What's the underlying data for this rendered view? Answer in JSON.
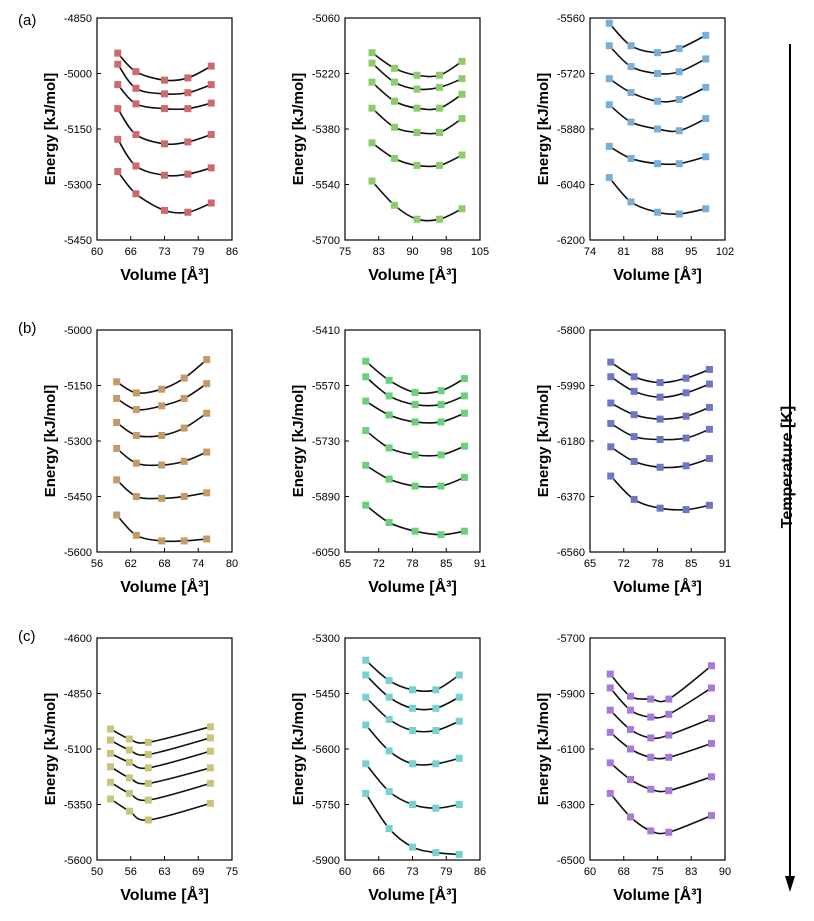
{
  "row_labels": [
    "(a)",
    "(b)",
    "(c)"
  ],
  "side_label": "Temperature [K]",
  "marker_shape": "square",
  "chart_data": [
    {
      "type": "line",
      "row": 0,
      "col": 0,
      "color": "#cd6a6a",
      "xlabel": "Volume [Å³]",
      "ylabel": "Energy [kJ/mol]",
      "xlim": [
        60,
        86
      ],
      "ylim": [
        -5450,
        -4850
      ],
      "xticks": [
        "60",
        "66",
        "73",
        "79",
        "86"
      ],
      "yticks": [
        "-4850",
        "-5000",
        "-5150",
        "-5300",
        "-5450"
      ],
      "x": [
        64,
        67.5,
        73,
        77.5,
        82
      ],
      "series": [
        {
          "values": [
            -4945,
            -4995,
            -5018,
            -5012,
            -4980
          ]
        },
        {
          "values": [
            -4975,
            -5040,
            -5055,
            -5052,
            -5030
          ]
        },
        {
          "values": [
            -5030,
            -5082,
            -5095,
            -5095,
            -5080
          ]
        },
        {
          "values": [
            -5095,
            -5165,
            -5190,
            -5185,
            -5165
          ]
        },
        {
          "values": [
            -5178,
            -5250,
            -5275,
            -5272,
            -5255
          ]
        },
        {
          "values": [
            -5265,
            -5325,
            -5370,
            -5375,
            -5350
          ]
        }
      ]
    },
    {
      "type": "line",
      "row": 0,
      "col": 1,
      "color": "#8ccc6a",
      "xlabel": "Volume [Å³]",
      "ylabel": "Energy [kJ/mol]",
      "xlim": [
        75,
        105
      ],
      "ylim": [
        -5700,
        -5060
      ],
      "xticks": [
        "75",
        "83",
        "90",
        "98",
        "105"
      ],
      "yticks": [
        "-5060",
        "-5220",
        "-5380",
        "-5540",
        "-5700"
      ],
      "x": [
        81,
        86,
        91,
        96,
        101
      ],
      "series": [
        {
          "values": [
            -5160,
            -5205,
            -5225,
            -5225,
            -5185
          ]
        },
        {
          "values": [
            -5190,
            -5245,
            -5265,
            -5260,
            -5235
          ]
        },
        {
          "values": [
            -5245,
            -5300,
            -5320,
            -5320,
            -5280
          ]
        },
        {
          "values": [
            -5320,
            -5375,
            -5390,
            -5390,
            -5350
          ]
        },
        {
          "values": [
            -5420,
            -5465,
            -5485,
            -5485,
            -5455
          ]
        },
        {
          "values": [
            -5530,
            -5600,
            -5640,
            -5640,
            -5610
          ]
        }
      ]
    },
    {
      "type": "line",
      "row": 0,
      "col": 2,
      "color": "#7aaed6",
      "xlabel": "Volume [Å³]",
      "ylabel": "Energy [kJ/mol]",
      "xlim": [
        74,
        102
      ],
      "ylim": [
        -6200,
        -5560
      ],
      "xticks": [
        "74",
        "81",
        "88",
        "95",
        "102"
      ],
      "yticks": [
        "-5560",
        "-5720",
        "-5880",
        "-6040",
        "-6200"
      ],
      "x": [
        78,
        82.5,
        88,
        92.5,
        98
      ],
      "series": [
        {
          "values": [
            -5575,
            -5640,
            -5660,
            -5648,
            -5610
          ]
        },
        {
          "values": [
            -5640,
            -5700,
            -5720,
            -5715,
            -5678
          ]
        },
        {
          "values": [
            -5735,
            -5775,
            -5800,
            -5795,
            -5760
          ]
        },
        {
          "values": [
            -5810,
            -5860,
            -5880,
            -5885,
            -5850
          ]
        },
        {
          "values": [
            -5930,
            -5965,
            -5980,
            -5980,
            -5960
          ]
        },
        {
          "values": [
            -6020,
            -6090,
            -6120,
            -6125,
            -6110
          ]
        }
      ]
    },
    {
      "type": "line",
      "row": 1,
      "col": 0,
      "color": "#c49a6a",
      "xlabel": "Volume [Å³]",
      "ylabel": "Energy [kJ/mol]",
      "xlim": [
        56,
        80
      ],
      "ylim": [
        -5600,
        -5000
      ],
      "xticks": [
        "56",
        "62",
        "68",
        "74",
        "80"
      ],
      "yticks": [
        "-5000",
        "-5150",
        "-5300",
        "-5450",
        "-5600"
      ],
      "x": [
        59.5,
        63,
        67.5,
        71.5,
        75.5
      ],
      "series": [
        {
          "values": [
            -5140,
            -5170,
            -5160,
            -5130,
            -5080
          ]
        },
        {
          "values": [
            -5185,
            -5215,
            -5205,
            -5185,
            -5145
          ]
        },
        {
          "values": [
            -5250,
            -5285,
            -5285,
            -5265,
            -5225
          ]
        },
        {
          "values": [
            -5320,
            -5360,
            -5365,
            -5355,
            -5330
          ]
        },
        {
          "values": [
            -5405,
            -5450,
            -5455,
            -5450,
            -5440
          ]
        },
        {
          "values": [
            -5500,
            -5555,
            -5570,
            -5570,
            -5565
          ]
        }
      ]
    },
    {
      "type": "line",
      "row": 1,
      "col": 1,
      "color": "#6ad07a",
      "xlabel": "Volume [Å³]",
      "ylabel": "Energy [kJ/mol]",
      "xlim": [
        65,
        91
      ],
      "ylim": [
        -6050,
        -5410
      ],
      "xticks": [
        "65",
        "72",
        "78",
        "85",
        "91"
      ],
      "yticks": [
        "-5410",
        "-5570",
        "-5730",
        "-5890",
        "-6050"
      ],
      "x": [
        69,
        73.5,
        78.5,
        83.5,
        88
      ],
      "series": [
        {
          "values": [
            -5500,
            -5555,
            -5590,
            -5585,
            -5550
          ]
        },
        {
          "values": [
            -5545,
            -5600,
            -5625,
            -5625,
            -5600
          ]
        },
        {
          "values": [
            -5615,
            -5655,
            -5675,
            -5675,
            -5650
          ]
        },
        {
          "values": [
            -5700,
            -5750,
            -5770,
            -5770,
            -5745
          ]
        },
        {
          "values": [
            -5800,
            -5840,
            -5860,
            -5860,
            -5835
          ]
        },
        {
          "values": [
            -5915,
            -5965,
            -5990,
            -6000,
            -5990
          ]
        }
      ]
    },
    {
      "type": "line",
      "row": 1,
      "col": 2,
      "color": "#6f76c4",
      "xlabel": "Volume [Å³]",
      "ylabel": "Energy [kJ/mol]",
      "xlim": [
        65,
        91
      ],
      "ylim": [
        -6560,
        -5800
      ],
      "xticks": [
        "65",
        "72",
        "78",
        "85",
        "91"
      ],
      "yticks": [
        "-5800",
        "-5990",
        "-6180",
        "-6370",
        "-6560"
      ],
      "x": [
        69,
        73.5,
        78.5,
        83.5,
        88
      ],
      "series": [
        {
          "values": [
            -5910,
            -5960,
            -5980,
            -5965,
            -5935
          ]
        },
        {
          "values": [
            -5960,
            -6010,
            -6030,
            -6015,
            -5985
          ]
        },
        {
          "values": [
            -6050,
            -6090,
            -6105,
            -6095,
            -6065
          ]
        },
        {
          "values": [
            -6120,
            -6165,
            -6175,
            -6170,
            -6140
          ]
        },
        {
          "values": [
            -6200,
            -6250,
            -6270,
            -6265,
            -6240
          ]
        },
        {
          "values": [
            -6300,
            -6380,
            -6410,
            -6415,
            -6400
          ]
        }
      ]
    },
    {
      "type": "line",
      "row": 2,
      "col": 0,
      "color": "#c8c47a",
      "xlabel": "Volume [Å³]",
      "ylabel": "Energy [kJ/mol]",
      "xlim": [
        50,
        75
      ],
      "ylim": [
        -5600,
        -4600
      ],
      "xticks": [
        "50",
        "56",
        "63",
        "69",
        "75"
      ],
      "yticks": [
        "-4600",
        "-4850",
        "-5100",
        "-5350",
        "-5600"
      ],
      "x": [
        52.5,
        56,
        59.5,
        71
      ],
      "series": [
        {
          "values": [
            -5010,
            -5055,
            -5070,
            -5000
          ]
        },
        {
          "values": [
            -5060,
            -5105,
            -5125,
            -5050
          ]
        },
        {
          "values": [
            -5120,
            -5160,
            -5185,
            -5110
          ]
        },
        {
          "values": [
            -5180,
            -5230,
            -5255,
            -5185
          ]
        },
        {
          "values": [
            -5250,
            -5300,
            -5330,
            -5255
          ]
        },
        {
          "values": [
            -5325,
            -5380,
            -5420,
            -5345
          ]
        }
      ]
    },
    {
      "type": "line",
      "row": 2,
      "col": 1,
      "color": "#78d0d0",
      "xlabel": "Volume [Å³]",
      "ylabel": "Energy [kJ/mol]",
      "xlim": [
        60,
        86
      ],
      "ylim": [
        -5900,
        -5300
      ],
      "xticks": [
        "60",
        "66",
        "73",
        "79",
        "86"
      ],
      "yticks": [
        "-5300",
        "-5450",
        "-5600",
        "-5750",
        "-5900"
      ],
      "x": [
        64,
        68.5,
        73,
        77.5,
        82
      ],
      "series": [
        {
          "values": [
            -5360,
            -5415,
            -5440,
            -5440,
            -5400
          ]
        },
        {
          "values": [
            -5400,
            -5460,
            -5490,
            -5490,
            -5460
          ]
        },
        {
          "values": [
            -5460,
            -5520,
            -5550,
            -5550,
            -5525
          ]
        },
        {
          "values": [
            -5535,
            -5605,
            -5640,
            -5640,
            -5625
          ]
        },
        {
          "values": [
            -5640,
            -5715,
            -5750,
            -5760,
            -5750
          ]
        },
        {
          "values": [
            -5720,
            -5815,
            -5865,
            -5880,
            -5885
          ]
        }
      ]
    },
    {
      "type": "line",
      "row": 2,
      "col": 2,
      "color": "#a77ad6",
      "xlabel": "Volume [Å³]",
      "ylabel": "Energy [kJ/mol]",
      "xlim": [
        60,
        90
      ],
      "ylim": [
        -6500,
        -5700
      ],
      "xticks": [
        "60",
        "68",
        "75",
        "83",
        "90"
      ],
      "yticks": [
        "-5700",
        "-5900",
        "-6100",
        "-6300",
        "-6500"
      ],
      "x": [
        64.5,
        69,
        73.5,
        77.5,
        87
      ],
      "series": [
        {
          "values": [
            -5830,
            -5910,
            -5920,
            -5920,
            -5800
          ]
        },
        {
          "values": [
            -5880,
            -5960,
            -5985,
            -5975,
            -5880
          ]
        },
        {
          "values": [
            -5960,
            -6030,
            -6060,
            -6050,
            -5990
          ]
        },
        {
          "values": [
            -6040,
            -6100,
            -6130,
            -6130,
            -6080
          ]
        },
        {
          "values": [
            -6150,
            -6210,
            -6245,
            -6250,
            -6200
          ]
        },
        {
          "values": [
            -6260,
            -6345,
            -6395,
            -6400,
            -6340
          ]
        }
      ]
    }
  ]
}
